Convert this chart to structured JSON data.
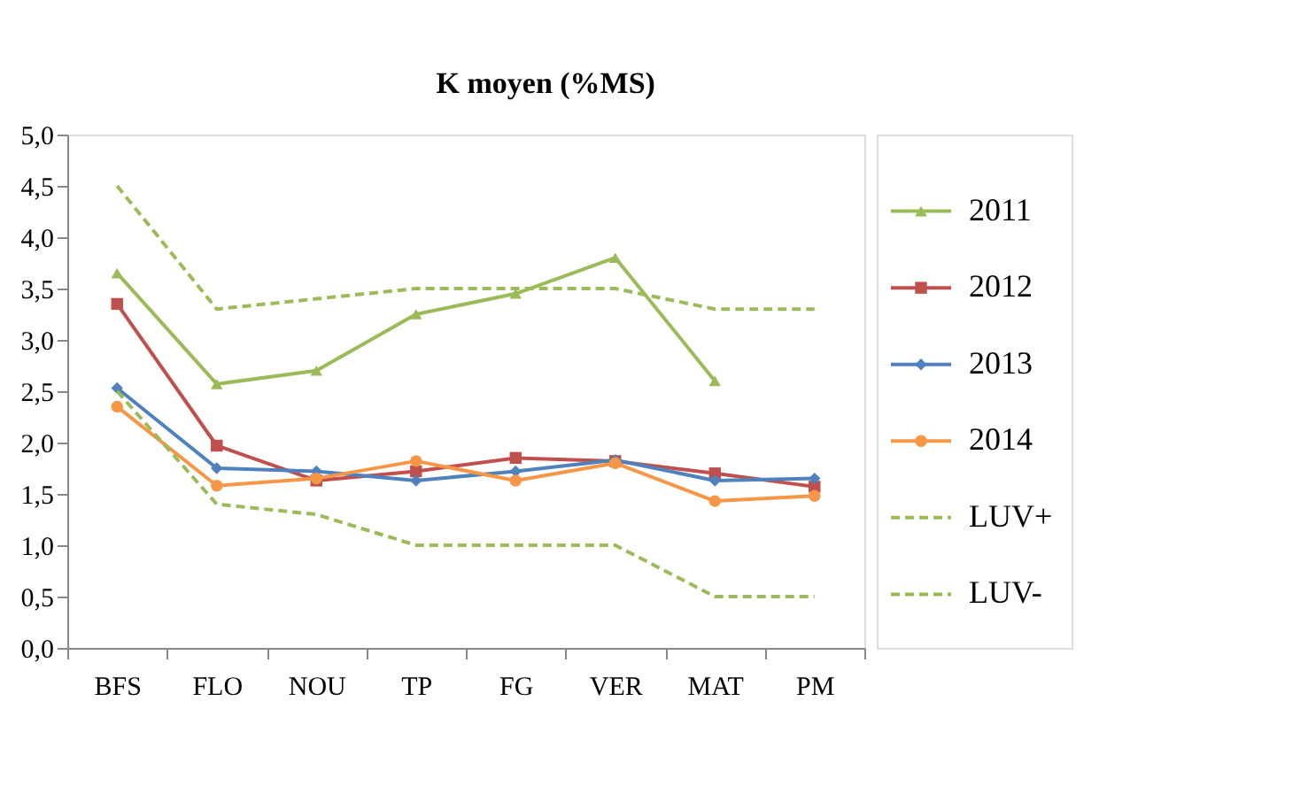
{
  "chart_data": {
    "type": "line",
    "title": "K moyen (%MS)",
    "categories": [
      "BFS",
      "FLO",
      "NOU",
      "TP",
      "FG",
      "VER",
      "MAT",
      "PM"
    ],
    "ylim": [
      0,
      5
    ],
    "yticks": [
      {
        "value": 0,
        "label": "0,0"
      },
      {
        "value": 0.5,
        "label": "0,5"
      },
      {
        "value": 1,
        "label": "1,0"
      },
      {
        "value": 1.5,
        "label": "1,5"
      },
      {
        "value": 2,
        "label": "2,0"
      },
      {
        "value": 2.5,
        "label": "2,5"
      },
      {
        "value": 3,
        "label": "3,0"
      },
      {
        "value": 3.5,
        "label": "3,5"
      },
      {
        "value": 4,
        "label": "4,0"
      },
      {
        "value": 4.5,
        "label": "4,5"
      },
      {
        "value": 5,
        "label": "5,0"
      }
    ],
    "legend": "right",
    "series": [
      {
        "name": "2011",
        "color": "#9bbb59",
        "marker": "triangle",
        "line_style": "solid",
        "values": [
          3.65,
          2.57,
          2.7,
          3.25,
          3.45,
          3.8,
          2.6,
          null
        ]
      },
      {
        "name": "2012",
        "color": "#c0504d",
        "marker": "square",
        "line_style": "solid",
        "values": [
          3.35,
          1.97,
          1.63,
          1.72,
          1.85,
          1.82,
          1.7,
          1.57
        ]
      },
      {
        "name": "2013",
        "color": "#4f81bd",
        "marker": "diamond",
        "line_style": "solid",
        "values": [
          2.53,
          1.75,
          1.72,
          1.63,
          1.72,
          1.83,
          1.63,
          1.65
        ]
      },
      {
        "name": "2014",
        "color": "#f79646",
        "marker": "circle",
        "line_style": "solid",
        "values": [
          2.35,
          1.58,
          1.65,
          1.82,
          1.63,
          1.8,
          1.43,
          1.48
        ]
      },
      {
        "name": "LUV+",
        "color": "#9bbb59",
        "marker": "none",
        "line_style": "dashed",
        "values": [
          4.5,
          3.3,
          3.4,
          3.5,
          3.5,
          3.5,
          3.3,
          3.3
        ]
      },
      {
        "name": "LUV-",
        "color": "#9bbb59",
        "marker": "none",
        "line_style": "dashed",
        "values": [
          2.5,
          1.4,
          1.3,
          1.0,
          1.0,
          1.0,
          0.5,
          0.5
        ]
      }
    ]
  }
}
